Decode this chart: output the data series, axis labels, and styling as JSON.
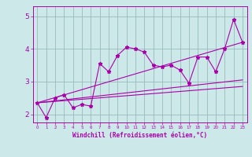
{
  "xlabel": "Windchill (Refroidissement éolien,°C)",
  "bg_color": "#cce8e8",
  "line_color": "#aa00aa",
  "grid_color": "#99bbbb",
  "xlim": [
    -0.5,
    23.5
  ],
  "ylim": [
    1.75,
    5.3
  ],
  "xticks": [
    0,
    1,
    2,
    3,
    4,
    5,
    6,
    7,
    8,
    9,
    10,
    11,
    12,
    13,
    14,
    15,
    16,
    17,
    18,
    19,
    20,
    21,
    22,
    23
  ],
  "yticks": [
    2,
    3,
    4,
    5
  ],
  "data_x": [
    0,
    1,
    2,
    3,
    4,
    5,
    6,
    7,
    8,
    9,
    10,
    11,
    12,
    13,
    14,
    15,
    16,
    17,
    18,
    19,
    20,
    21,
    22,
    23
  ],
  "data_y": [
    2.35,
    1.9,
    2.5,
    2.6,
    2.2,
    2.3,
    2.25,
    3.55,
    3.3,
    3.8,
    4.05,
    4.0,
    3.9,
    3.5,
    3.45,
    3.5,
    3.35,
    2.95,
    3.75,
    3.75,
    3.3,
    4.0,
    4.9,
    4.2
  ],
  "trend1_x": [
    0,
    23
  ],
  "trend1_y": [
    2.35,
    4.2
  ],
  "trend2_x": [
    0,
    23
  ],
  "trend2_y": [
    2.35,
    3.05
  ],
  "trend3_x": [
    0,
    23
  ],
  "trend3_y": [
    2.35,
    2.85
  ]
}
